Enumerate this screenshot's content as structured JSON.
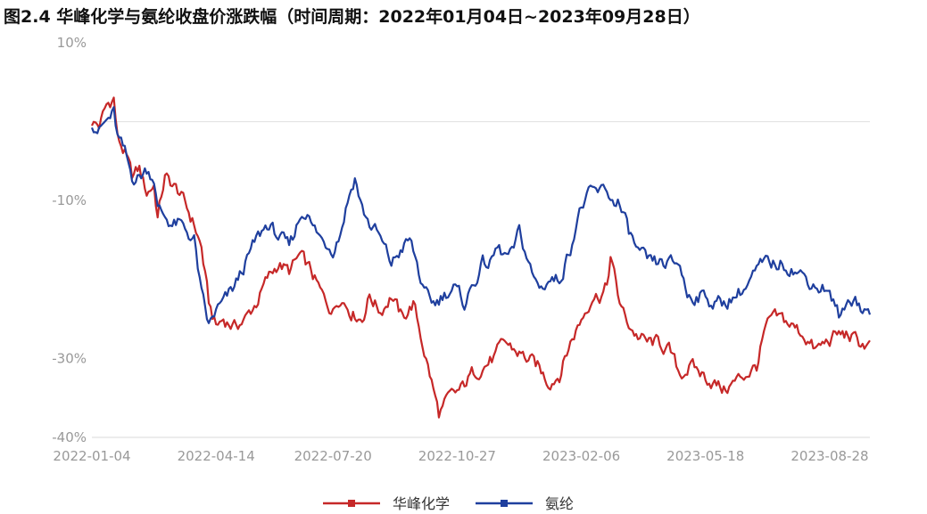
{
  "chart_data": {
    "type": "line",
    "title": "图2.4 华峰化学与氨纶收盘价涨跌幅（时间周期：2022年01月04日~2023年09月28日）",
    "xlabel": "",
    "ylabel": "",
    "ylim": [
      -40,
      10
    ],
    "y_ticks": [
      10,
      -10,
      -30,
      -40
    ],
    "y_tick_labels": [
      "10%",
      "-10%",
      "-30%",
      "-40%"
    ],
    "reference_line": 0,
    "x_tick_labels": [
      "2022-01-04",
      "2022-04-14",
      "2022-07-20",
      "2022-10-27",
      "2023-02-06",
      "2023-05-18",
      "2023-08-28"
    ],
    "x_tick_positions": [
      0,
      68,
      132,
      200,
      268,
      336,
      404
    ],
    "n_points": 427,
    "grid": false,
    "legend_position": "bottom",
    "colors": {
      "华峰化学": "#c62828",
      "氨纶": "#1f3f9e",
      "axis": "#d9d9d9",
      "reference": "#e0e0e0"
    },
    "series": [
      {
        "name": "华峰化学",
        "color": "#c62828",
        "points": [
          [
            0,
            0
          ],
          [
            4,
            -0.5
          ],
          [
            8,
            2
          ],
          [
            12,
            3
          ],
          [
            14,
            -2
          ],
          [
            18,
            -4
          ],
          [
            22,
            -7
          ],
          [
            26,
            -6
          ],
          [
            30,
            -9
          ],
          [
            34,
            -8
          ],
          [
            36,
            -12
          ],
          [
            40,
            -7
          ],
          [
            44,
            -8
          ],
          [
            48,
            -9
          ],
          [
            52,
            -11
          ],
          [
            56,
            -13
          ],
          [
            60,
            -16
          ],
          [
            64,
            -23
          ],
          [
            68,
            -26
          ],
          [
            72,
            -25
          ],
          [
            78,
            -26
          ],
          [
            84,
            -25
          ],
          [
            90,
            -23
          ],
          [
            96,
            -20
          ],
          [
            102,
            -18
          ],
          [
            108,
            -19
          ],
          [
            114,
            -17
          ],
          [
            120,
            -19
          ],
          [
            126,
            -22
          ],
          [
            132,
            -24
          ],
          [
            136,
            -22
          ],
          [
            142,
            -24
          ],
          [
            148,
            -25
          ],
          [
            152,
            -22
          ],
          [
            158,
            -24
          ],
          [
            164,
            -22
          ],
          [
            170,
            -25
          ],
          [
            176,
            -23
          ],
          [
            180,
            -27
          ],
          [
            184,
            -31
          ],
          [
            188,
            -35
          ],
          [
            190,
            -37
          ],
          [
            196,
            -35
          ],
          [
            202,
            -34
          ],
          [
            208,
            -32
          ],
          [
            214,
            -31
          ],
          [
            220,
            -30
          ],
          [
            226,
            -28
          ],
          [
            232,
            -29
          ],
          [
            238,
            -30
          ],
          [
            244,
            -31
          ],
          [
            250,
            -33
          ],
          [
            256,
            -32
          ],
          [
            262,
            -28
          ],
          [
            266,
            -26
          ],
          [
            270,
            -24
          ],
          [
            274,
            -22
          ],
          [
            278,
            -22
          ],
          [
            282,
            -21
          ],
          [
            284,
            -17
          ],
          [
            288,
            -22
          ],
          [
            292,
            -25
          ],
          [
            298,
            -27
          ],
          [
            304,
            -28
          ],
          [
            310,
            -28
          ],
          [
            316,
            -29
          ],
          [
            322,
            -32
          ],
          [
            328,
            -31
          ],
          [
            334,
            -32
          ],
          [
            340,
            -33
          ],
          [
            346,
            -34
          ],
          [
            352,
            -33
          ],
          [
            358,
            -32
          ],
          [
            364,
            -31
          ],
          [
            368,
            -27
          ],
          [
            372,
            -25
          ],
          [
            378,
            -25
          ],
          [
            384,
            -26
          ],
          [
            390,
            -27
          ],
          [
            396,
            -29
          ],
          [
            402,
            -28
          ],
          [
            408,
            -27
          ],
          [
            414,
            -27
          ],
          [
            420,
            -28
          ],
          [
            426,
            -28.5
          ]
        ]
      },
      {
        "name": "氨纶",
        "color": "#1f3f9e",
        "points": [
          [
            0,
            0
          ],
          [
            4,
            -1
          ],
          [
            8,
            0
          ],
          [
            12,
            1
          ],
          [
            14,
            -2
          ],
          [
            18,
            -4
          ],
          [
            22,
            -7
          ],
          [
            26,
            -7
          ],
          [
            30,
            -6
          ],
          [
            34,
            -7
          ],
          [
            36,
            -11
          ],
          [
            40,
            -12
          ],
          [
            44,
            -13
          ],
          [
            48,
            -13
          ],
          [
            52,
            -14
          ],
          [
            56,
            -15
          ],
          [
            60,
            -22
          ],
          [
            64,
            -26
          ],
          [
            68,
            -24
          ],
          [
            72,
            -23
          ],
          [
            78,
            -21
          ],
          [
            84,
            -18
          ],
          [
            90,
            -15
          ],
          [
            96,
            -13
          ],
          [
            100,
            -14
          ],
          [
            104,
            -15
          ],
          [
            108,
            -16
          ],
          [
            114,
            -12
          ],
          [
            118,
            -11
          ],
          [
            120,
            -13
          ],
          [
            126,
            -15
          ],
          [
            132,
            -16
          ],
          [
            136,
            -14
          ],
          [
            140,
            -10
          ],
          [
            144,
            -7
          ],
          [
            148,
            -11
          ],
          [
            152,
            -13
          ],
          [
            156,
            -14
          ],
          [
            160,
            -16
          ],
          [
            164,
            -18
          ],
          [
            170,
            -16
          ],
          [
            174,
            -15
          ],
          [
            178,
            -18
          ],
          [
            182,
            -22
          ],
          [
            188,
            -23
          ],
          [
            192,
            -22
          ],
          [
            198,
            -21
          ],
          [
            204,
            -23
          ],
          [
            208,
            -21
          ],
          [
            214,
            -18
          ],
          [
            218,
            -18
          ],
          [
            222,
            -16
          ],
          [
            226,
            -17
          ],
          [
            230,
            -17
          ],
          [
            234,
            -14
          ],
          [
            238,
            -17
          ],
          [
            242,
            -20
          ],
          [
            246,
            -21
          ],
          [
            250,
            -20
          ],
          [
            256,
            -20
          ],
          [
            262,
            -16
          ],
          [
            266,
            -12
          ],
          [
            270,
            -10
          ],
          [
            274,
            -9
          ],
          [
            278,
            -9
          ],
          [
            282,
            -8.5
          ],
          [
            284,
            -10
          ],
          [
            288,
            -10
          ],
          [
            294,
            -14
          ],
          [
            300,
            -17
          ],
          [
            306,
            -18
          ],
          [
            312,
            -18
          ],
          [
            318,
            -18
          ],
          [
            322,
            -18
          ],
          [
            326,
            -22
          ],
          [
            330,
            -22
          ],
          [
            336,
            -22
          ],
          [
            340,
            -23
          ],
          [
            346,
            -23
          ],
          [
            352,
            -22
          ],
          [
            358,
            -21
          ],
          [
            364,
            -19
          ],
          [
            368,
            -18
          ],
          [
            374,
            -18
          ],
          [
            380,
            -18
          ],
          [
            386,
            -19
          ],
          [
            392,
            -20
          ],
          [
            398,
            -21
          ],
          [
            402,
            -21
          ],
          [
            406,
            -23
          ],
          [
            410,
            -25
          ],
          [
            414,
            -23
          ],
          [
            418,
            -22
          ],
          [
            422,
            -24
          ],
          [
            426,
            -24
          ]
        ]
      }
    ]
  }
}
